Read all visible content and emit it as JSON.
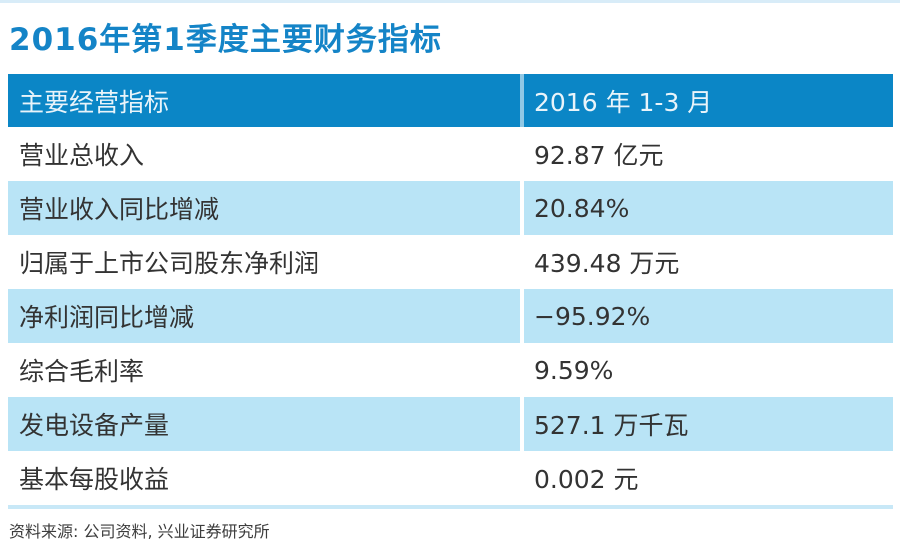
{
  "page": {
    "title": "2016年第1季度主要财务指标"
  },
  "table": {
    "headers": [
      "主要经营指标",
      "2016 年 1-3 月"
    ],
    "rows": [
      {
        "label": "营业总收入",
        "value": "92.87 亿元"
      },
      {
        "label": "营业收入同比增减",
        "value": "20.84%"
      },
      {
        "label": "归属于上市公司股东净利润",
        "value": "439.48 万元"
      },
      {
        "label": "净利润同比增减",
        "value": "−95.92%"
      },
      {
        "label": "综合毛利率",
        "value": "9.59%"
      },
      {
        "label": "发电设备产量",
        "value": "527.1 万千瓦"
      },
      {
        "label": "基本每股收益",
        "value": "0.002 元"
      }
    ]
  },
  "footer": {
    "source": "资料来源: 公司资料, 兴业证券研究所"
  },
  "colors": {
    "title_blue": "#1484c7",
    "header_bg": "#0b86c6",
    "header_text": "#e9f4fa",
    "alt_row_bg": "#b9e4f6",
    "body_text": "#333333",
    "top_line": "#d8ecf8",
    "bottom_line": "#c8e8f7"
  },
  "chart_data": {
    "type": "table",
    "title": "2016年第1季度主要财务指标",
    "columns": [
      "主要经营指标",
      "2016 年 1-3 月"
    ],
    "rows": [
      [
        "营业总收入",
        "92.87 亿元"
      ],
      [
        "营业收入同比增减",
        "20.84%"
      ],
      [
        "归属于上市公司股东净利润",
        "439.48 万元"
      ],
      [
        "净利润同比增减",
        "−95.92%"
      ],
      [
        "综合毛利率",
        "9.59%"
      ],
      [
        "发电设备产量",
        "527.1 万千瓦"
      ],
      [
        "基本每股收益",
        "0.002 元"
      ]
    ],
    "source": "资料来源: 公司资料, 兴业证券研究所"
  }
}
